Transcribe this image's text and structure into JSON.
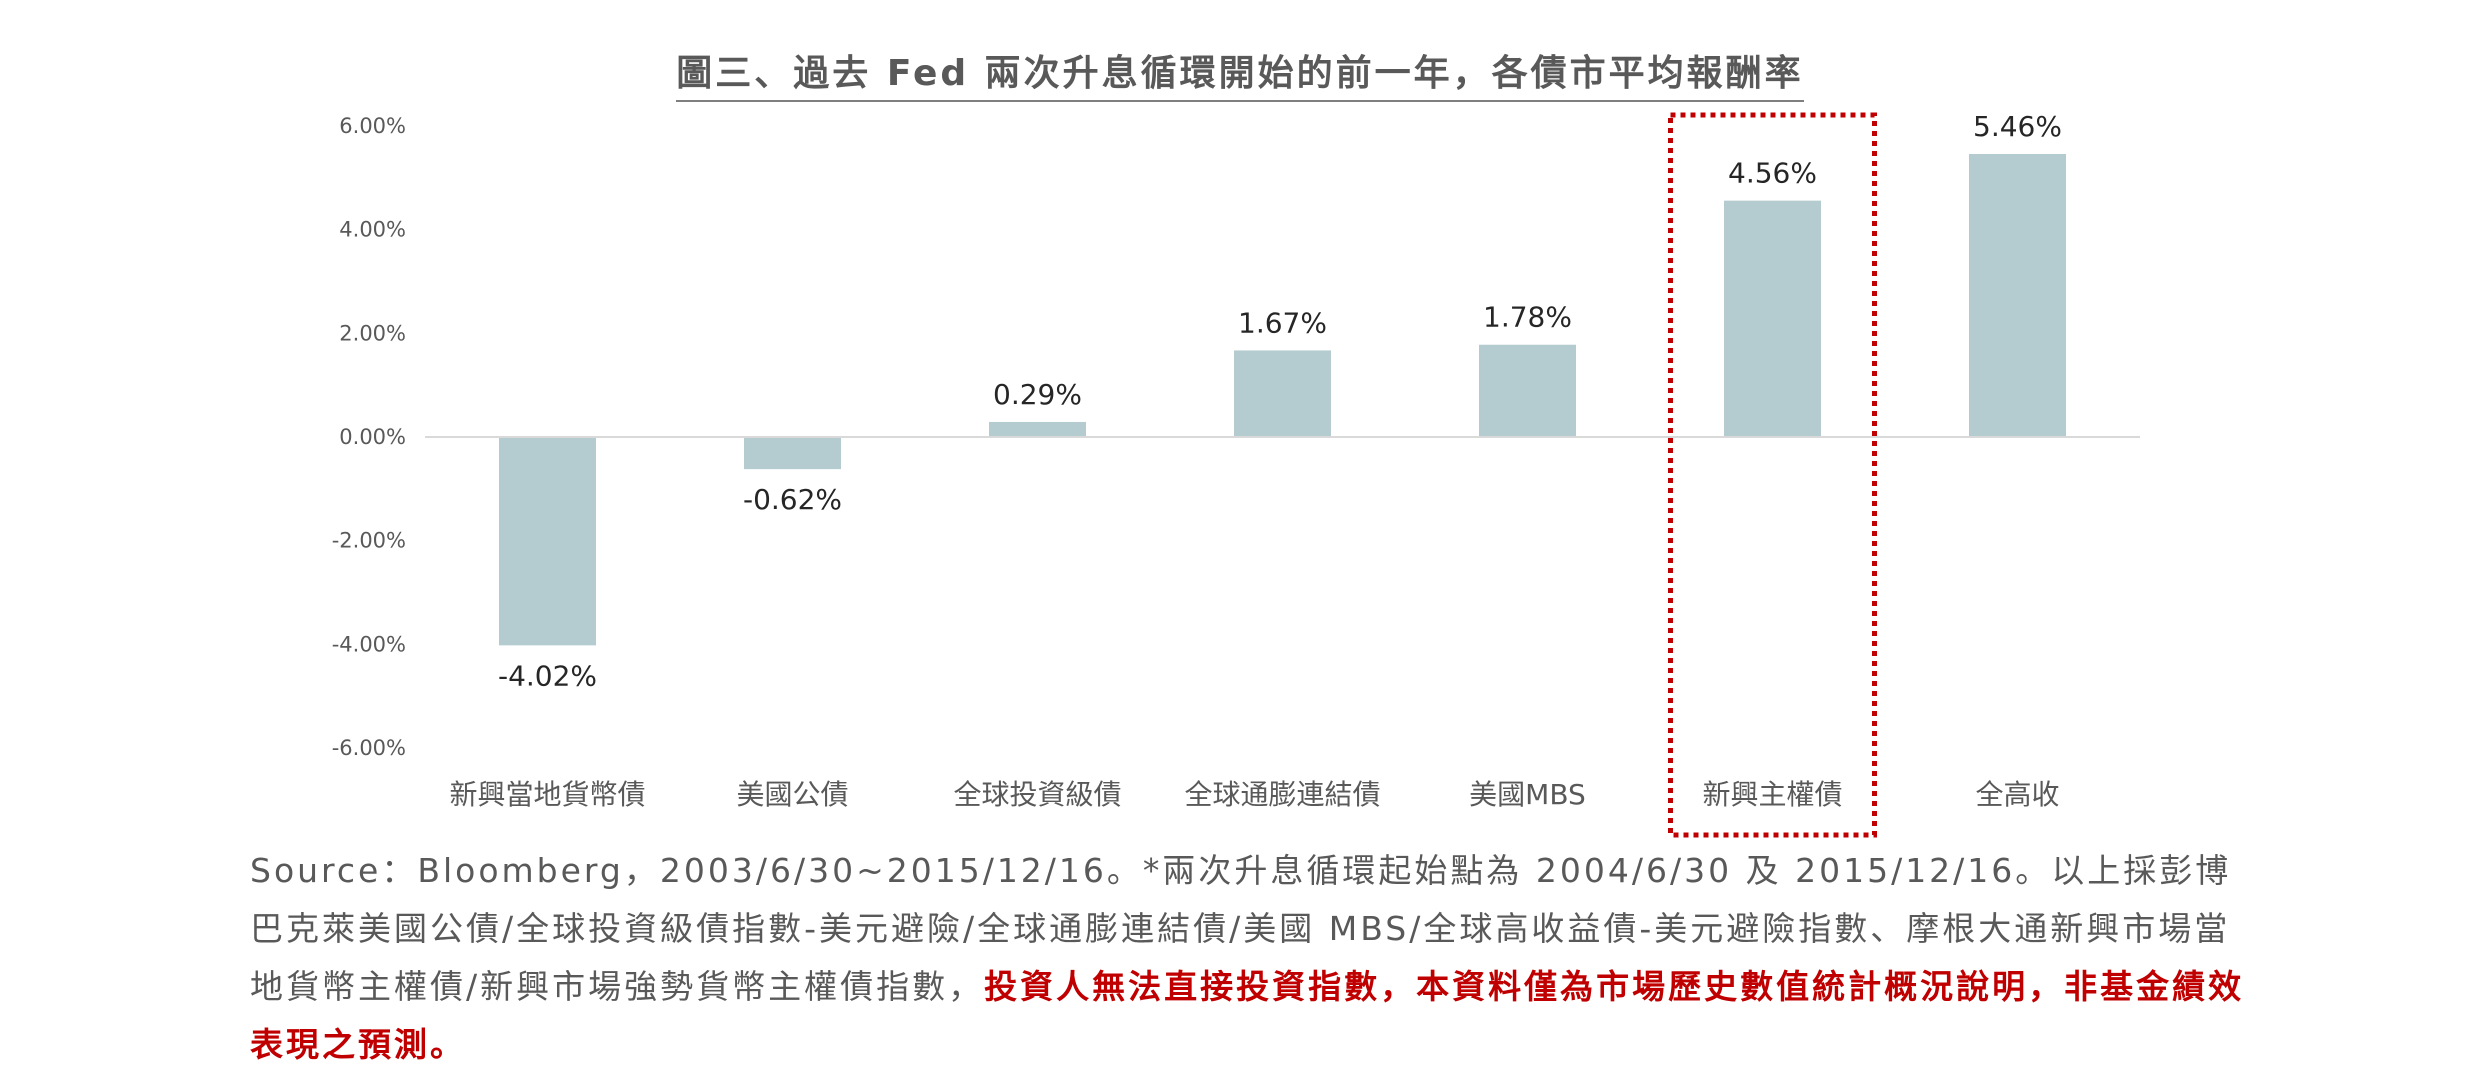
{
  "page": {
    "title": "圖三、過去 Fed 兩次升息循環開始的前一年，各債市平均報酬率",
    "source_text": "Source：Bloomberg，2003/6/30~2015/12/16。*兩次升息循環起始點為 2004/6/30 及 2015/12/16。以上採彭博巴克萊美國公債/全球投資級債指數-美元避險/全球通膨連結債/美國 MBS/全球高收益債-美元避險指數、摩根大通新興市場當地貨幣主權債/新興市場強勢貨幣主權債指數，",
    "disclaimer": "投資人無法直接投資指數，本資料僅為市場歷史數值統計概況說明，非基金績效表現之預測。"
  },
  "chart_data": {
    "type": "bar",
    "title": "圖三、過去 Fed 兩次升息循環開始的前一年，各債市平均報酬率",
    "xlabel": "",
    "ylabel": "",
    "categories": [
      "新興當地貨幣債",
      "美國公債",
      "全球投資級債",
      "全球通膨連結債",
      "美國MBS",
      "新興主權債",
      "全高收"
    ],
    "values": [
      -4.02,
      -0.62,
      0.29,
      1.67,
      1.78,
      4.56,
      5.46
    ],
    "data_labels": [
      "-4.02%",
      "-0.62%",
      "0.29%",
      "1.67%",
      "1.78%",
      "4.56%",
      "5.46%"
    ],
    "ylim": [
      -6,
      6
    ],
    "yticks": [
      -6,
      -4,
      -2,
      0,
      2,
      4,
      6
    ],
    "ytick_labels": [
      "-6.00%",
      "-4.00%",
      "-2.00%",
      "0.00%",
      "2.00%",
      "4.00%",
      "6.00%"
    ],
    "grid": false,
    "legend": "none",
    "highlight_category": "新興主權債",
    "colors": {
      "bar": "#b4cbd0",
      "highlight_box": "#c00000",
      "axis_line": "#d9d9d9",
      "tick_text": "#595959",
      "label_text": "#262626"
    }
  }
}
